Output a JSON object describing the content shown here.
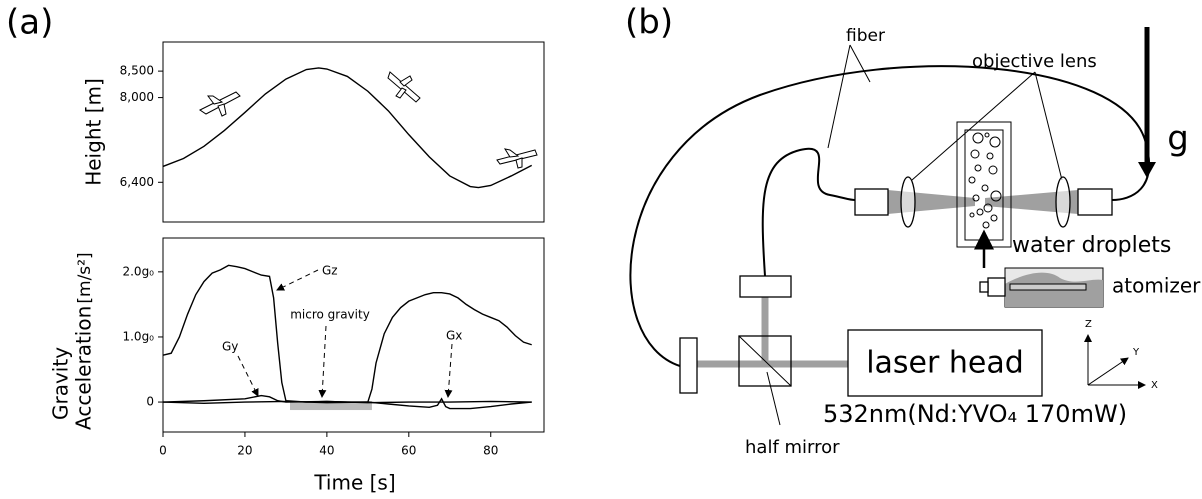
{
  "panel_a": "(a)",
  "chart_data": [
    {
      "type": "line",
      "y_label": "Height [m]",
      "color": "#000000",
      "xlim": [
        0,
        93
      ],
      "ylim": [
        5650,
        9050
      ],
      "yticks": [
        {
          "value": 6400,
          "label": "6,400"
        },
        {
          "value": 8000,
          "label": "8,000"
        },
        {
          "value": 8500,
          "label": "8,500"
        }
      ],
      "x": [
        0,
        5,
        10,
        15,
        20,
        25,
        30,
        35,
        38,
        40,
        45,
        50,
        55,
        60,
        65,
        70,
        75,
        77,
        80,
        85,
        90
      ],
      "values": [
        6700,
        6850,
        7080,
        7380,
        7720,
        8070,
        8350,
        8530,
        8560,
        8540,
        8400,
        8120,
        7750,
        7300,
        6880,
        6520,
        6320,
        6300,
        6340,
        6520,
        6720
      ]
    },
    {
      "type": "line",
      "y_label": [
        "Gravity",
        "Acceleration"
      ],
      "y_unit": "[m/s²]",
      "x_label": "Time [s]",
      "annotation": "micro gravity",
      "span": [
        31,
        51
      ],
      "span_color": "#bbbbbb",
      "xlim": [
        0,
        93
      ],
      "ylim": [
        -0.46,
        2.52
      ],
      "xticks": [
        0,
        20,
        40,
        60,
        80
      ],
      "yticks": [
        0,
        {
          "value": 1,
          "label": "1.0g₀"
        },
        {
          "value": 2,
          "label": "2.0g₀"
        }
      ],
      "series": [
        {
          "name": "Gz",
          "color": "#000000",
          "x": [
            0,
            2,
            4,
            6,
            8,
            10,
            12,
            14,
            16,
            18,
            20,
            22,
            24,
            26,
            27,
            28,
            29,
            30,
            35,
            40,
            45,
            50,
            51,
            52,
            54,
            56,
            58,
            60,
            62,
            64,
            66,
            68,
            70,
            72,
            74,
            76,
            78,
            80,
            82,
            84,
            86,
            88,
            90
          ],
          "values": [
            0.72,
            0.75,
            1.0,
            1.35,
            1.65,
            1.85,
            1.98,
            2.03,
            2.1,
            2.08,
            2.05,
            2.0,
            1.95,
            1.93,
            1.6,
            0.9,
            0.3,
            0.02,
            0.0,
            0.01,
            0.0,
            0.0,
            0.2,
            0.6,
            1.05,
            1.3,
            1.45,
            1.55,
            1.6,
            1.65,
            1.68,
            1.68,
            1.66,
            1.6,
            1.5,
            1.42,
            1.35,
            1.3,
            1.25,
            1.15,
            1.02,
            0.92,
            0.88
          ]
        },
        {
          "name": "Gy",
          "color": "#000000",
          "x": [
            0,
            10,
            20,
            24,
            26,
            28,
            30,
            40,
            50,
            60,
            70,
            80,
            90
          ],
          "values": [
            0.0,
            0.02,
            0.05,
            0.1,
            0.08,
            0.02,
            0.0,
            0.01,
            -0.01,
            0.0,
            0.0,
            0.01,
            0.0
          ]
        },
        {
          "name": "Gx",
          "color": "#000000",
          "x": [
            0,
            10,
            20,
            30,
            40,
            50,
            55,
            60,
            65,
            67,
            68,
            69,
            70,
            75,
            80,
            85,
            90
          ],
          "values": [
            0.0,
            -0.02,
            0.0,
            0.01,
            -0.01,
            0.0,
            -0.03,
            -0.06,
            -0.08,
            -0.05,
            0.05,
            -0.07,
            -0.1,
            -0.1,
            -0.07,
            -0.03,
            0.0
          ]
        }
      ]
    }
  ],
  "diagram": {
    "panel_label": "(b)",
    "fiber": "fiber",
    "objective_lens": "objective lens",
    "gravity": "g",
    "water_droplets": "water droplets",
    "atomizer": "atomizer",
    "laser_head": "laser head",
    "laser_spec": "532nm(Nd:YVO₄ 170mW)",
    "half_mirror": "half mirror",
    "axis_z": "Z",
    "axis_y": "Y",
    "axis_x": "X"
  }
}
